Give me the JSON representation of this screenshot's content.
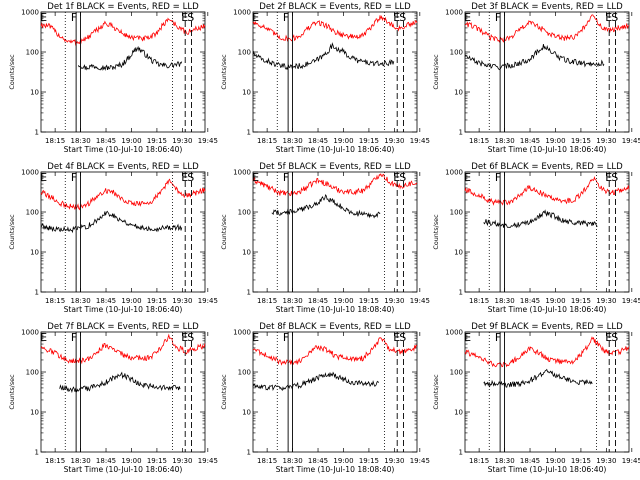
{
  "figure": {
    "colors": {
      "events": "#000000",
      "lld": "#ff0000",
      "axes": "#000000",
      "background": "#ffffff"
    },
    "ylabel": "Counts/sec",
    "yticks": [
      "1",
      "10",
      "100",
      "1000"
    ],
    "xticks": [
      "18:15",
      "18:30",
      "18:45",
      "19:00",
      "19:15",
      "19:30",
      "19:45"
    ]
  },
  "chart_data": [
    {
      "type": "line",
      "title": "Det 1f BLACK = Events, RED = LLD",
      "xlabel": "Start Time (10-Jul-10 18:06:40)",
      "yscale": "log",
      "ylim": [
        1,
        1000
      ],
      "xlim_min": [
        0,
        96.67
      ],
      "series": [
        {
          "name": "Events",
          "color": "#000000",
          "start_min": 22,
          "end_min": 83,
          "base": [
            50,
            40,
            45,
            42,
            40,
            42,
            50,
            80,
            130,
            90,
            60,
            48,
            45,
            48,
            50
          ]
        },
        {
          "name": "LLD",
          "color": "#ff0000",
          "start_min": 0,
          "end_min": 96.67,
          "base": [
            480,
            430,
            260,
            180,
            175,
            215,
            330,
            520,
            420,
            280,
            230,
            215,
            220,
            360,
            700,
            430,
            300,
            380,
            450
          ]
        }
      ],
      "markers": [
        {
          "label": "E",
          "min": 1.5
        },
        {
          "label": "F",
          "min": 19.5
        },
        {
          "label": "E",
          "min": 84.7
        },
        {
          "label": "S",
          "min": 88.3
        }
      ],
      "dotted_min": [
        14.3,
        77.5
      ],
      "solid_min": [
        20.7,
        23.3
      ],
      "dashed_min": [
        85.0,
        88.7
      ]
    },
    {
      "type": "line",
      "title": "Det 2f BLACK = Events, RED = LLD",
      "xlabel": "Start Time (10-Jul-10 18:06:40)",
      "yscale": "log",
      "ylim": [
        1,
        1000
      ],
      "xlim_min": [
        0,
        96.67
      ],
      "series": [
        {
          "name": "Events",
          "color": "#000000",
          "start_min": 0,
          "end_min": 83,
          "base": [
            90,
            65,
            55,
            45,
            42,
            44,
            48,
            58,
            80,
            140,
            110,
            75,
            60,
            55,
            50,
            52,
            55
          ]
        },
        {
          "name": "LLD",
          "color": "#ff0000",
          "start_min": 0,
          "end_min": 96.67,
          "base": [
            560,
            450,
            320,
            230,
            210,
            240,
            380,
            560,
            470,
            320,
            260,
            240,
            250,
            420,
            800,
            500,
            380,
            470,
            540
          ]
        }
      ],
      "markers": [
        {
          "label": "E",
          "min": 1.5
        },
        {
          "label": "F",
          "min": 19.5
        },
        {
          "label": "E",
          "min": 84.7
        },
        {
          "label": "S",
          "min": 88.3
        }
      ],
      "dotted_min": [
        14.3,
        77.5
      ],
      "solid_min": [
        20.7,
        23.3
      ],
      "dashed_min": [
        85.0,
        88.7
      ]
    },
    {
      "type": "line",
      "title": "Det 3f BLACK = Events, RED = LLD",
      "xlabel": "Start Time (10-Jul-10 18:06:40)",
      "yscale": "log",
      "ylim": [
        1,
        1000
      ],
      "xlim_min": [
        0,
        96.67
      ],
      "series": [
        {
          "name": "Events",
          "color": "#000000",
          "start_min": 0,
          "end_min": 82,
          "base": [
            80,
            60,
            50,
            44,
            42,
            45,
            50,
            60,
            85,
            140,
            100,
            70,
            58,
            55,
            50,
            52,
            52
          ]
        },
        {
          "name": "LLD",
          "color": "#ff0000",
          "start_min": 0,
          "end_min": 96.67,
          "base": [
            520,
            430,
            300,
            220,
            200,
            230,
            360,
            540,
            450,
            300,
            240,
            220,
            230,
            400,
            780,
            420,
            330,
            420,
            480
          ]
        }
      ],
      "markers": [
        {
          "label": "E",
          "min": 1.5
        },
        {
          "label": "F",
          "min": 19.5
        },
        {
          "label": "E",
          "min": 84.7
        },
        {
          "label": "S",
          "min": 88.3
        }
      ],
      "dotted_min": [
        14.3,
        77.5
      ],
      "solid_min": [
        20.7,
        23.3
      ],
      "dashed_min": [
        85.0,
        88.7
      ]
    },
    {
      "type": "line",
      "title": "Det 4f BLACK = Events, RED = LLD",
      "xlabel": "Start Time (10-Jul-10 18:06:40)",
      "yscale": "log",
      "ylim": [
        1,
        1000
      ],
      "xlim_min": [
        0,
        96.67
      ],
      "series": [
        {
          "name": "Events",
          "color": "#000000",
          "start_min": 0,
          "end_min": 83,
          "base": [
            45,
            40,
            36,
            35,
            38,
            45,
            60,
            100,
            75,
            55,
            45,
            40,
            38,
            40,
            42,
            40
          ]
        },
        {
          "name": "LLD",
          "color": "#ff0000",
          "start_min": 0,
          "end_min": 96.67,
          "base": [
            320,
            240,
            170,
            140,
            130,
            150,
            220,
            360,
            300,
            210,
            170,
            160,
            170,
            280,
            620,
            330,
            250,
            300,
            360
          ]
        }
      ],
      "markers": [
        {
          "label": "E",
          "min": 1.5
        },
        {
          "label": "F",
          "min": 19.5
        },
        {
          "label": "E",
          "min": 84.7
        },
        {
          "label": "S",
          "min": 88.3
        }
      ],
      "dotted_min": [
        14.3,
        77.5
      ],
      "solid_min": [
        20.7,
        23.3
      ],
      "dashed_min": [
        85.0,
        88.7
      ]
    },
    {
      "type": "line",
      "title": "Det 5f BLACK = Events, RED = LLD",
      "xlabel": "Start Time (10-Jul-10 18:08:40)",
      "yscale": "log",
      "ylim": [
        1,
        1000
      ],
      "xlim_min": [
        0,
        96.67
      ],
      "series": [
        {
          "name": "Events",
          "color": "#000000",
          "start_min": 11,
          "end_min": 75,
          "base": [
            100,
            95,
            100,
            110,
            130,
            170,
            240,
            170,
            120,
            95,
            88,
            85,
            85
          ]
        },
        {
          "name": "LLD",
          "color": "#ff0000",
          "start_min": 0,
          "end_min": 96.67,
          "base": [
            650,
            500,
            380,
            300,
            280,
            310,
            430,
            620,
            520,
            380,
            330,
            320,
            340,
            520,
            950,
            560,
            420,
            500,
            560
          ]
        }
      ],
      "markers": [
        {
          "label": "E",
          "min": 1.5
        },
        {
          "label": "F",
          "min": 19.5
        },
        {
          "label": "E",
          "min": 84.7
        },
        {
          "label": "S",
          "min": 88.3
        }
      ],
      "dotted_min": [
        14.3,
        77.5
      ],
      "solid_min": [
        20.7,
        23.3
      ],
      "dashed_min": [
        85.0,
        88.7
      ]
    },
    {
      "type": "line",
      "title": "Det 6f BLACK = Events, RED = LLD",
      "xlabel": "Start Time (10-Jul-10 18:06:40)",
      "yscale": "log",
      "ylim": [
        1,
        1000
      ],
      "xlim_min": [
        0,
        96.67
      ],
      "series": [
        {
          "name": "Events",
          "color": "#000000",
          "start_min": 11,
          "end_min": 78,
          "base": [
            58,
            52,
            48,
            46,
            48,
            55,
            70,
            95,
            80,
            62,
            55,
            52,
            50,
            50
          ]
        },
        {
          "name": "LLD",
          "color": "#ff0000",
          "start_min": 0,
          "end_min": 96.67,
          "base": [
            360,
            290,
            230,
            180,
            165,
            180,
            260,
            400,
            330,
            240,
            200,
            190,
            200,
            330,
            720,
            380,
            300,
            350,
            420
          ]
        }
      ],
      "markers": [
        {
          "label": "E",
          "min": 1.5
        },
        {
          "label": "F",
          "min": 19.5
        },
        {
          "label": "E",
          "min": 84.7
        },
        {
          "label": "S",
          "min": 88.3
        }
      ],
      "dotted_min": [
        14.3,
        77.5
      ],
      "solid_min": [
        20.7,
        23.3
      ],
      "dashed_min": [
        85.0,
        88.7
      ]
    },
    {
      "type": "line",
      "title": "Det 7f BLACK = Events, RED = LLD",
      "xlabel": "Start Time (10-Jul-10 18:06:40)",
      "yscale": "log",
      "ylim": [
        1,
        1000
      ],
      "xlim_min": [
        0,
        96.67
      ],
      "series": [
        {
          "name": "Events",
          "color": "#000000",
          "start_min": 11,
          "end_min": 82,
          "base": [
            40,
            38,
            36,
            38,
            42,
            50,
            65,
            90,
            72,
            55,
            46,
            42,
            40,
            40,
            40
          ]
        },
        {
          "name": "LLD",
          "color": "#ff0000",
          "start_min": 0,
          "end_min": 96.67,
          "base": [
            420,
            340,
            260,
            200,
            185,
            200,
            300,
            470,
            380,
            270,
            230,
            220,
            230,
            360,
            760,
            400,
            330,
            390,
            450
          ]
        }
      ],
      "markers": [
        {
          "label": "E",
          "min": 1.5
        },
        {
          "label": "F",
          "min": 19.5
        },
        {
          "label": "E",
          "min": 84.7
        },
        {
          "label": "S",
          "min": 88.3
        }
      ],
      "dotted_min": [
        14.3,
        77.5
      ],
      "solid_min": [
        20.7,
        23.3
      ],
      "dashed_min": [
        85.0,
        88.7
      ]
    },
    {
      "type": "line",
      "title": "Det 8f BLACK = Events, RED = LLD",
      "xlabel": "Start Time (10-Jul-10 18:08:40)",
      "yscale": "log",
      "ylim": [
        1,
        1000
      ],
      "xlim_min": [
        0,
        96.67
      ],
      "series": [
        {
          "name": "Events",
          "color": "#000000",
          "start_min": 0,
          "end_min": 74,
          "base": [
            45,
            42,
            40,
            40,
            42,
            48,
            60,
            75,
            90,
            70,
            58,
            52,
            50,
            50
          ]
        },
        {
          "name": "LLD",
          "color": "#ff0000",
          "start_min": 0,
          "end_min": 96.67,
          "base": [
            380,
            300,
            230,
            180,
            170,
            185,
            270,
            430,
            360,
            260,
            220,
            210,
            220,
            350,
            700,
            380,
            310,
            370,
            420
          ]
        }
      ],
      "markers": [
        {
          "label": "E",
          "min": 1.5
        },
        {
          "label": "F",
          "min": 19.5
        },
        {
          "label": "E",
          "min": 84.7
        },
        {
          "label": "S",
          "min": 88.3
        }
      ],
      "dotted_min": [
        14.3,
        77.5
      ],
      "solid_min": [
        20.7,
        23.3
      ],
      "dashed_min": [
        85.0,
        88.7
      ]
    },
    {
      "type": "line",
      "title": "Det 9f BLACK = Events, RED = LLD",
      "xlabel": "Start Time (10-Jul-10 18:06:40)",
      "yscale": "log",
      "ylim": [
        1,
        1000
      ],
      "xlim_min": [
        0,
        96.67
      ],
      "series": [
        {
          "name": "Events",
          "color": "#000000",
          "start_min": 11,
          "end_min": 75,
          "base": [
            55,
            50,
            48,
            48,
            52,
            60,
            75,
            105,
            85,
            68,
            58,
            55,
            55
          ]
        },
        {
          "name": "LLD",
          "color": "#ff0000",
          "start_min": 0,
          "end_min": 96.67,
          "base": [
            320,
            260,
            200,
            160,
            150,
            165,
            240,
            380,
            310,
            220,
            185,
            180,
            190,
            320,
            700,
            370,
            280,
            330,
            400
          ]
        }
      ],
      "markers": [
        {
          "label": "E",
          "min": 1.5
        },
        {
          "label": "F",
          "min": 19.5
        },
        {
          "label": "E",
          "min": 84.7
        },
        {
          "label": "S",
          "min": 88.3
        }
      ],
      "dotted_min": [
        14.3,
        77.5
      ],
      "solid_min": [
        20.7,
        23.3
      ],
      "dashed_min": [
        85.0,
        88.7
      ]
    }
  ]
}
